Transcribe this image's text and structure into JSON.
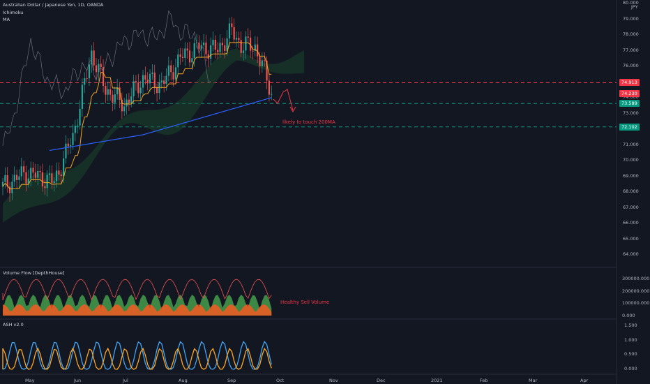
{
  "header": {
    "symbol_title": "Australian Dollar / Japanese Yen, 1D, OANDA",
    "indicator_1": "Ichimoku",
    "indicator_2": "MA",
    "currency": "JPY"
  },
  "price_axis": {
    "labels": [
      "80.000",
      "79.000",
      "78.000",
      "77.000",
      "76.000",
      "75.000",
      "74.000",
      "73.000",
      "72.000",
      "71.000",
      "70.000",
      "69.000",
      "68.000",
      "67.000",
      "66.000",
      "65.000",
      "64.000"
    ]
  },
  "price_badges": [
    {
      "value": "74.913",
      "color": "#f23645"
    },
    {
      "value": "74.230",
      "color": "#f23645"
    },
    {
      "value": "73.589",
      "color": "#089981"
    },
    {
      "value": "72.102",
      "color": "#089981"
    }
  ],
  "annotations": {
    "main_note": "likely to touch 200MA",
    "volume_note": "Healthy Sell Volume"
  },
  "volume_pane": {
    "title": "Volume Flow [DepthHouse]",
    "labels": [
      "300000.000",
      "200000.000",
      "100000.000",
      "0.000"
    ]
  },
  "ash_pane": {
    "title": "ASH v2.0",
    "labels": [
      "1.500",
      "1.000",
      "0.500",
      "0.000"
    ]
  },
  "time_axis": {
    "months": [
      "May",
      "Jun",
      "Jul",
      "Aug",
      "Sep",
      "Oct",
      "Nov",
      "Dec",
      "2021",
      "Feb",
      "Mar",
      "Apr"
    ]
  },
  "colors": {
    "background": "#131722",
    "up": "#26a69a",
    "down": "#ef5350",
    "tenkan": "#f5a623",
    "ma200": "#2962ff",
    "resistance": "#f23645",
    "support": "#089981"
  }
}
